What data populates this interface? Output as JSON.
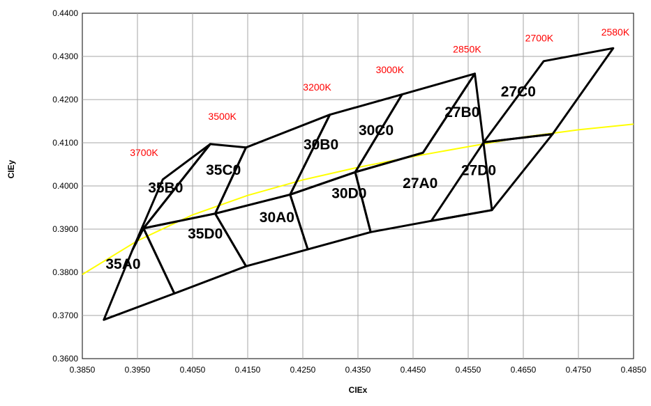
{
  "chart_data": {
    "type": "scatter",
    "title": "",
    "xlabel": "CIEx",
    "ylabel": "CIEy",
    "xlim": [
      0.385,
      0.485
    ],
    "ylim": [
      0.36,
      0.44
    ],
    "x_ticks": [
      "0.3850",
      "0.3950",
      "0.4050",
      "0.4150",
      "0.4250",
      "0.4350",
      "0.4450",
      "0.4550",
      "0.4650",
      "0.4750",
      "0.4850"
    ],
    "y_ticks": [
      "0.3600",
      "0.3700",
      "0.3800",
      "0.3900",
      "0.4000",
      "0.4100",
      "0.4200",
      "0.4300",
      "0.4400"
    ],
    "grid": true,
    "colors": {
      "bins": "#000000",
      "locus": "#ffff00",
      "cct_labels": "#ff0000",
      "grid": "#a6a6a6"
    },
    "bins": [
      {
        "name": "35A0",
        "x": [
          0.3889,
          0.4017,
          0.3961,
          0.3941
        ],
        "y": [
          0.369,
          0.3751,
          0.3902,
          0.3852
        ]
      },
      {
        "name": "35B0",
        "x": [
          0.3941,
          0.3961,
          0.4082,
          0.3996
        ],
        "y": [
          0.3852,
          0.3902,
          0.4097,
          0.4015
        ]
      },
      {
        "name": "35D0",
        "x": [
          0.4017,
          0.4147,
          0.4091,
          0.3961
        ],
        "y": [
          0.3751,
          0.3814,
          0.3936,
          0.3902
        ]
      },
      {
        "name": "35C0",
        "x": [
          0.3961,
          0.4091,
          0.4147,
          0.4082
        ],
        "y": [
          0.3902,
          0.3936,
          0.4089,
          0.4097
        ]
      },
      {
        "name": "30A0",
        "x": [
          0.4147,
          0.4259,
          0.4227,
          0.4091
        ],
        "y": [
          0.3814,
          0.3853,
          0.398,
          0.3936
        ]
      },
      {
        "name": "30B0",
        "x": [
          0.4091,
          0.4227,
          0.4299,
          0.4147
        ],
        "y": [
          0.3936,
          0.398,
          0.4165,
          0.4089
        ]
      },
      {
        "name": "30D0",
        "x": [
          0.4259,
          0.4373,
          0.4345,
          0.4227
        ],
        "y": [
          0.3853,
          0.3893,
          0.4032,
          0.398
        ]
      },
      {
        "name": "30C0",
        "x": [
          0.4227,
          0.4345,
          0.443,
          0.4299
        ],
        "y": [
          0.398,
          0.4032,
          0.4212,
          0.4165
        ]
      },
      {
        "name": "27A0",
        "x": [
          0.4373,
          0.4483,
          0.4593,
          0.4562,
          0.4468,
          0.4345
        ],
        "y": [
          0.3893,
          0.3919,
          0.3944,
          0.426,
          0.4077,
          0.4032
        ]
      },
      {
        "name": "27B0",
        "x": [
          0.4345,
          0.4468,
          0.4562,
          0.443
        ],
        "y": [
          0.4032,
          0.4077,
          0.426,
          0.4212
        ]
      },
      {
        "name": "27D0",
        "x": [
          0.4483,
          0.4593,
          0.4703,
          0.4578
        ],
        "y": [
          0.3919,
          0.3944,
          0.412,
          0.4101
        ]
      },
      {
        "name": "27C0",
        "x": [
          0.4578,
          0.4703,
          0.4813,
          0.4687
        ],
        "y": [
          0.4101,
          0.412,
          0.4319,
          0.4289
        ]
      }
    ],
    "bin_labels": [
      {
        "text": "35A0",
        "x": 0.3924,
        "y": 0.3808
      },
      {
        "text": "35B0",
        "x": 0.4001,
        "y": 0.3985
      },
      {
        "text": "35D0",
        "x": 0.4073,
        "y": 0.3878
      },
      {
        "text": "35C0",
        "x": 0.4106,
        "y": 0.4026
      },
      {
        "text": "30A0",
        "x": 0.4203,
        "y": 0.3916
      },
      {
        "text": "30B0",
        "x": 0.4283,
        "y": 0.4085
      },
      {
        "text": "30D0",
        "x": 0.4334,
        "y": 0.3972
      },
      {
        "text": "30C0",
        "x": 0.4383,
        "y": 0.4118
      },
      {
        "text": "27A0",
        "x": 0.4463,
        "y": 0.3995
      },
      {
        "text": "27B0",
        "x": 0.4539,
        "y": 0.416
      },
      {
        "text": "27D0",
        "x": 0.4569,
        "y": 0.4025
      },
      {
        "text": "27C0",
        "x": 0.4641,
        "y": 0.4207
      }
    ],
    "cct_labels": [
      {
        "text": "3700K",
        "x": 0.3962,
        "y": 0.4069
      },
      {
        "text": "3500K",
        "x": 0.4104,
        "y": 0.4153
      },
      {
        "text": "3200K",
        "x": 0.4276,
        "y": 0.4221
      },
      {
        "text": "3000K",
        "x": 0.4408,
        "y": 0.4261
      },
      {
        "text": "2850K",
        "x": 0.4548,
        "y": 0.4309
      },
      {
        "text": "2700K",
        "x": 0.4679,
        "y": 0.4335
      },
      {
        "text": "2580K",
        "x": 0.4817,
        "y": 0.4348
      }
    ],
    "locus": {
      "x": [
        0.385,
        0.395,
        0.405,
        0.415,
        0.425,
        0.435,
        0.445,
        0.455,
        0.465,
        0.475,
        0.485
      ],
      "y": [
        0.3795,
        0.3873,
        0.3933,
        0.3978,
        0.4014,
        0.4043,
        0.4068,
        0.4091,
        0.4113,
        0.413,
        0.4143
      ]
    }
  }
}
